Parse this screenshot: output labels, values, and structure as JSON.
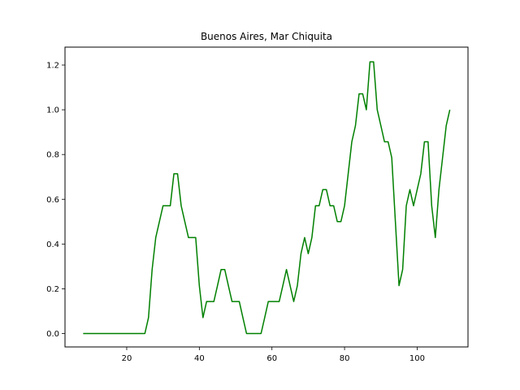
{
  "chart_data": {
    "type": "line",
    "title": "Buenos Aires, Mar Chiquita",
    "xlabel": "",
    "ylabel": "",
    "xlim": [
      3,
      114
    ],
    "ylim": [
      -0.06,
      1.28
    ],
    "xticks": [
      20,
      40,
      60,
      80,
      100
    ],
    "yticks": [
      0.0,
      0.2,
      0.4,
      0.6,
      0.8,
      1.0,
      1.2
    ],
    "xtick_labels": [
      "20",
      "40",
      "60",
      "80",
      "100"
    ],
    "ytick_labels": [
      "0.0",
      "0.2",
      "0.4",
      "0.6",
      "0.8",
      "1.0",
      "1.2"
    ],
    "grid": false,
    "series": [
      {
        "color": "#008000",
        "x": [
          8,
          9,
          10,
          11,
          12,
          13,
          14,
          15,
          16,
          17,
          18,
          19,
          20,
          21,
          22,
          23,
          24,
          25,
          26,
          27,
          28,
          29,
          30,
          31,
          32,
          33,
          34,
          35,
          36,
          37,
          38,
          39,
          40,
          41,
          42,
          43,
          44,
          45,
          46,
          47,
          48,
          49,
          50,
          51,
          52,
          53,
          54,
          55,
          56,
          57,
          58,
          59,
          60,
          61,
          62,
          63,
          64,
          65,
          66,
          67,
          68,
          69,
          70,
          71,
          72,
          73,
          74,
          75,
          76,
          77,
          78,
          79,
          80,
          81,
          82,
          83,
          84,
          85,
          86,
          87,
          88,
          89,
          90,
          91,
          92,
          93,
          94,
          95,
          96,
          97,
          98,
          99,
          100,
          101,
          102,
          103,
          104,
          105,
          106,
          107,
          108,
          109
        ],
        "y": [
          0,
          0,
          0,
          0,
          0,
          0,
          0,
          0,
          0,
          0,
          0,
          0,
          0,
          0,
          0,
          0,
          0,
          0,
          0.071,
          0.286,
          0.429,
          0.5,
          0.571,
          0.571,
          0.571,
          0.714,
          0.714,
          0.571,
          0.5,
          0.429,
          0.429,
          0.429,
          0.214,
          0.071,
          0.143,
          0.143,
          0.143,
          0.214,
          0.286,
          0.286,
          0.214,
          0.143,
          0.143,
          0.143,
          0.071,
          0,
          0,
          0,
          0,
          0,
          0.071,
          0.143,
          0.143,
          0.143,
          0.143,
          0.214,
          0.286,
          0.214,
          0.143,
          0.214,
          0.357,
          0.429,
          0.357,
          0.429,
          0.571,
          0.571,
          0.643,
          0.643,
          0.571,
          0.571,
          0.5,
          0.5,
          0.571,
          0.714,
          0.857,
          0.929,
          1.071,
          1.071,
          1.0,
          1.214,
          1.214,
          1.0,
          0.929,
          0.857,
          0.857,
          0.786,
          0.5,
          0.214,
          0.286,
          0.571,
          0.643,
          0.571,
          0.643,
          0.714,
          0.857,
          0.857,
          0.571,
          0.429,
          0.643,
          0.786,
          0.929,
          1.0
        ]
      }
    ]
  }
}
